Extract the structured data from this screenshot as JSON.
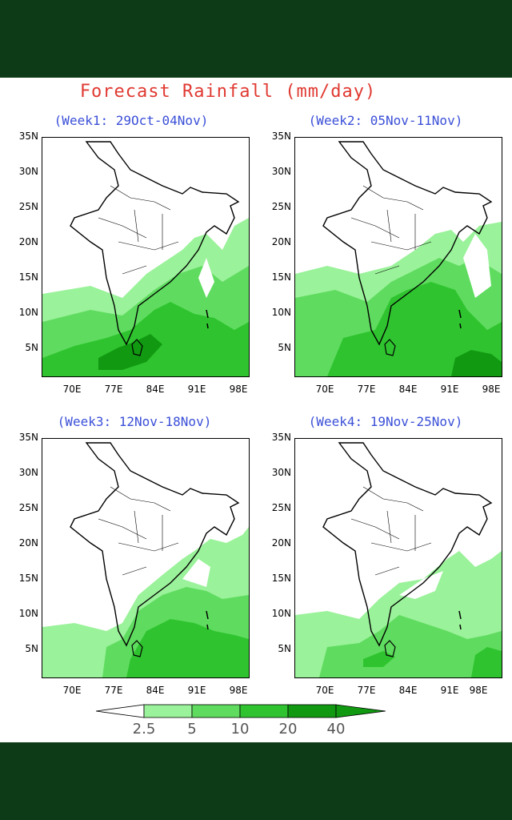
{
  "title": "Forecast Rainfall (mm/day)",
  "panels": [
    {
      "label": "(Week1: 29Oct-04Nov)"
    },
    {
      "label": "(Week2: 05Nov-11Nov)"
    },
    {
      "label": "(Week3: 12Nov-18Nov)"
    },
    {
      "label": "(Week4: 19Nov-25Nov)"
    }
  ],
  "lat_ticks": [
    "35N",
    "30N",
    "25N",
    "20N",
    "15N",
    "10N",
    "5N"
  ],
  "lon_ticks": [
    "70E",
    "77E",
    "84E",
    "91E",
    "98E"
  ],
  "legend": {
    "labels": [
      "2.5",
      "5",
      "10",
      "20",
      "40"
    ],
    "colors": [
      "#ffffff",
      "#9af29a",
      "#5fdc5f",
      "#2fc42f",
      "#119a11"
    ]
  },
  "colors": {
    "background": "#0e3b17",
    "title": "#e03a32",
    "panel_title": "#3a4fd8"
  }
}
